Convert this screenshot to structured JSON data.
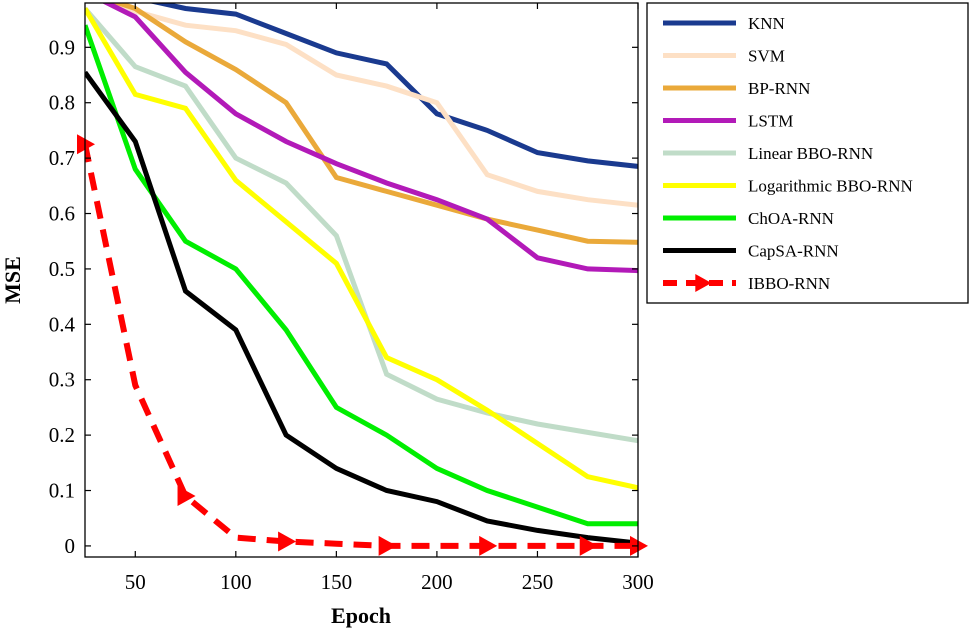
{
  "chart_data": {
    "type": "line",
    "title": "",
    "xlabel": "Epoch",
    "ylabel": "MSE",
    "xlim": [
      25,
      300
    ],
    "ylim": [
      -0.02,
      0.98
    ],
    "xticks": [
      50,
      100,
      150,
      200,
      250,
      300
    ],
    "yticks": [
      0,
      0.1,
      0.2,
      0.3,
      0.4,
      0.5,
      0.6,
      0.7,
      0.8,
      0.9
    ],
    "ytick_labels": [
      "0",
      "0.1",
      "0.2",
      "0.3",
      "0.4",
      "0.5",
      "0.6",
      "0.7",
      "0.8",
      "0.9"
    ],
    "grid": false,
    "legend_position": "outside-right-top",
    "series": [
      {
        "name": "KNN",
        "color": "#1a3a8f",
        "dashed": false,
        "marker": "none",
        "x": [
          25,
          50,
          75,
          100,
          125,
          150,
          175,
          200,
          225,
          250,
          275,
          300
        ],
        "y": [
          1.0,
          0.99,
          0.97,
          0.96,
          0.925,
          0.89,
          0.87,
          0.78,
          0.75,
          0.71,
          0.695,
          0.685
        ]
      },
      {
        "name": "SVM",
        "color": "#fde0c5",
        "dashed": false,
        "marker": "none",
        "x": [
          25,
          50,
          75,
          100,
          125,
          150,
          175,
          200,
          225,
          250,
          275,
          300
        ],
        "y": [
          1.0,
          0.965,
          0.94,
          0.93,
          0.905,
          0.85,
          0.83,
          0.8,
          0.67,
          0.64,
          0.625,
          0.615
        ]
      },
      {
        "name": "BP-RNN",
        "color": "#eaa93a",
        "dashed": false,
        "marker": "none",
        "x": [
          25,
          50,
          75,
          100,
          125,
          150,
          175,
          200,
          225,
          250,
          275,
          300
        ],
        "y": [
          1.0,
          0.97,
          0.91,
          0.86,
          0.8,
          0.665,
          0.64,
          0.615,
          0.59,
          0.57,
          0.55,
          0.548
        ]
      },
      {
        "name": "LSTM",
        "color": "#b21ab8",
        "dashed": false,
        "marker": "none",
        "x": [
          25,
          50,
          75,
          100,
          125,
          150,
          175,
          200,
          225,
          250,
          275,
          300
        ],
        "y": [
          1.0,
          0.955,
          0.855,
          0.78,
          0.73,
          0.69,
          0.655,
          0.625,
          0.59,
          0.52,
          0.5,
          0.497
        ]
      },
      {
        "name": "Linear BBO-RNN",
        "color": "#c0dcc8",
        "dashed": false,
        "marker": "none",
        "x": [
          25,
          50,
          75,
          100,
          125,
          150,
          175,
          200,
          225,
          250,
          275,
          300
        ],
        "y": [
          0.97,
          0.865,
          0.83,
          0.7,
          0.655,
          0.56,
          0.31,
          0.265,
          0.24,
          0.22,
          0.205,
          0.19
        ]
      },
      {
        "name": "Logarithmic BBO-RNN",
        "color": "#ffff00",
        "dashed": false,
        "marker": "none",
        "x": [
          25,
          50,
          75,
          100,
          125,
          150,
          175,
          200,
          225,
          250,
          275,
          300
        ],
        "y": [
          0.97,
          0.815,
          0.79,
          0.66,
          0.585,
          0.51,
          0.34,
          0.3,
          0.245,
          0.185,
          0.125,
          0.105
        ]
      },
      {
        "name": "ChOA-RNN",
        "color": "#00ee00",
        "dashed": false,
        "marker": "none",
        "x": [
          25,
          50,
          75,
          100,
          125,
          150,
          175,
          200,
          225,
          250,
          275,
          300
        ],
        "y": [
          0.94,
          0.68,
          0.55,
          0.5,
          0.39,
          0.25,
          0.2,
          0.14,
          0.1,
          0.07,
          0.04,
          0.04
        ]
      },
      {
        "name": "CapSA-RNN",
        "color": "#000000",
        "dashed": false,
        "marker": "none",
        "x": [
          25,
          50,
          75,
          100,
          125,
          150,
          175,
          200,
          225,
          250,
          275,
          300
        ],
        "y": [
          0.855,
          0.73,
          0.46,
          0.39,
          0.2,
          0.14,
          0.1,
          0.08,
          0.045,
          0.028,
          0.015,
          0.005
        ]
      },
      {
        "name": "IBBO-RNN",
        "color": "#ff0000",
        "dashed": true,
        "marker": "triangle-right",
        "x": [
          25,
          50,
          75,
          100,
          125,
          150,
          175,
          200,
          225,
          250,
          275,
          300
        ],
        "y": [
          0.725,
          0.29,
          0.09,
          0.015,
          0.008,
          0.004,
          0.0,
          0.0,
          0.0,
          0.0,
          0.0,
          0.0
        ]
      }
    ]
  }
}
